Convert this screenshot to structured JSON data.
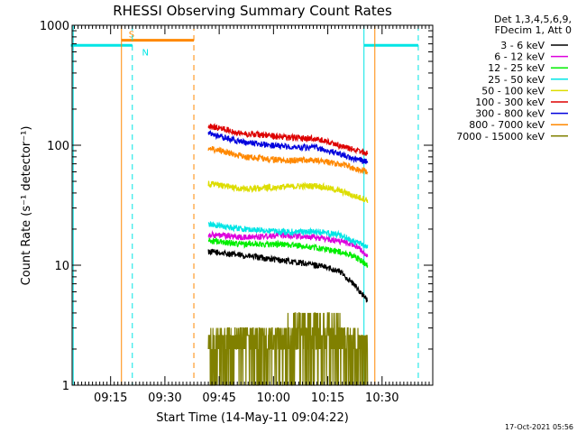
{
  "chart_data": {
    "type": "line",
    "title": "RHESSI Observing Summary Count Rates",
    "xlabel": "Start Time (14-May-11 09:04:22)",
    "ylabel": "Count Rate (s⁻¹ detector⁻¹)",
    "yscale": "log",
    "ylim": [
      1,
      1000
    ],
    "xlim": [
      "09:04:22",
      "10:44:00"
    ],
    "x_ticks": [
      "09:15",
      "09:30",
      "09:45",
      "10:00",
      "10:15",
      "10:30"
    ],
    "y_ticks": [
      "1",
      "10",
      "100",
      "1000"
    ],
    "timestamp": "17-Oct-2021 05:56",
    "legend_header": [
      "Det 1,3,4,5,6,9,",
      "FDecim 1, Att 0"
    ],
    "legend_position": "right",
    "series": [
      {
        "name": "3 - 6 keV",
        "color": "#000000",
        "x": [
          "09:42",
          "09:52",
          "10:02",
          "10:12",
          "10:18",
          "10:22",
          "10:26"
        ],
        "values": [
          13,
          12,
          11,
          10,
          9,
          7,
          5
        ]
      },
      {
        "name": "6 - 12 keV",
        "color": "#dd00dd",
        "x": [
          "09:42",
          "09:52",
          "10:02",
          "10:12",
          "10:18",
          "10:22",
          "10:26"
        ],
        "values": [
          18,
          17,
          18,
          17,
          16,
          15,
          12
        ]
      },
      {
        "name": "12 - 25 keV",
        "color": "#00ee00",
        "x": [
          "09:42",
          "09:52",
          "10:02",
          "10:12",
          "10:18",
          "10:22",
          "10:26"
        ],
        "values": [
          16,
          15,
          15,
          14,
          13,
          12,
          10
        ]
      },
      {
        "name": "25 - 50 keV",
        "color": "#00e5e5",
        "x": [
          "09:42",
          "09:52",
          "10:02",
          "10:12",
          "10:18",
          "10:22",
          "10:26"
        ],
        "values": [
          22,
          20,
          19,
          19,
          18,
          16,
          14
        ]
      },
      {
        "name": "50 - 100 keV",
        "color": "#dddd00",
        "x": [
          "09:42",
          "09:52",
          "10:02",
          "10:12",
          "10:18",
          "10:22",
          "10:26"
        ],
        "values": [
          48,
          43,
          45,
          46,
          42,
          38,
          35
        ]
      },
      {
        "name": "100 - 300 keV",
        "color": "#dd0000",
        "x": [
          "09:42",
          "09:52",
          "10:02",
          "10:12",
          "10:18",
          "10:22",
          "10:26"
        ],
        "values": [
          145,
          125,
          118,
          113,
          100,
          92,
          85
        ]
      },
      {
        "name": "300 - 800 keV",
        "color": "#0000dd",
        "x": [
          "09:42",
          "09:52",
          "10:02",
          "10:12",
          "10:18",
          "10:22",
          "10:26"
        ],
        "values": [
          125,
          105,
          98,
          95,
          85,
          78,
          72
        ]
      },
      {
        "name": "800 - 7000 keV",
        "color": "#ff8800",
        "x": [
          "09:42",
          "09:52",
          "10:02",
          "10:12",
          "10:18",
          "10:22",
          "10:26"
        ],
        "values": [
          95,
          80,
          75,
          75,
          70,
          65,
          60
        ]
      },
      {
        "name": "7000 - 15000 keV",
        "color": "#808000",
        "x": [
          "09:42",
          "09:52",
          "10:02",
          "10:12",
          "10:18",
          "10:22",
          "10:26"
        ],
        "values": [
          2,
          2.4,
          2.4,
          3.2,
          2.6,
          2,
          1.6
        ]
      }
    ],
    "annotations": [
      {
        "label": "S",
        "color": "#ff8800",
        "x": "09:18",
        "x_end": "09:38",
        "y": 750
      },
      {
        "label": "N",
        "color": "#00e5e5",
        "x": "09:04",
        "x_end": "09:21",
        "y": 680
      },
      {
        "label": "",
        "color": "#00e5e5",
        "x": "10:25",
        "x_end": "10:40",
        "y": 680
      }
    ],
    "vertical_lines": [
      {
        "x": "09:04:40",
        "color": "#00e5e5",
        "style": "solid"
      },
      {
        "x": "09:18",
        "color": "#ff8800",
        "style": "solid"
      },
      {
        "x": "09:21",
        "color": "#00e5e5",
        "style": "dashed"
      },
      {
        "x": "09:38",
        "color": "#ff8800",
        "style": "dashed"
      },
      {
        "x": "10:25",
        "color": "#00e5e5",
        "style": "solid"
      },
      {
        "x": "10:28",
        "color": "#ff8800",
        "style": "solid"
      },
      {
        "x": "10:40",
        "color": "#00e5e5",
        "style": "dashed"
      }
    ],
    "grid": false
  }
}
